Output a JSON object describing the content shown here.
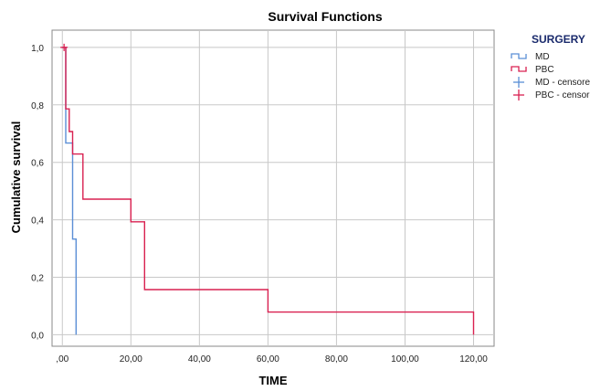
{
  "chart_data": {
    "type": "line",
    "step": true,
    "title": "Survival Functions",
    "xlabel": "TIME",
    "ylabel": "Cumulative survival",
    "xlim": [
      -3,
      126
    ],
    "ylim": [
      -0.04,
      1.06
    ],
    "xticks": [
      {
        "value": 0,
        "label": ",00"
      },
      {
        "value": 20,
        "label": "20,00"
      },
      {
        "value": 40,
        "label": "40,00"
      },
      {
        "value": 60,
        "label": "60,00"
      },
      {
        "value": 80,
        "label": "80,00"
      },
      {
        "value": 100,
        "label": "100,00"
      },
      {
        "value": 120,
        "label": "120,00"
      }
    ],
    "yticks": [
      {
        "value": 0,
        "label": "0,0"
      },
      {
        "value": 0.2,
        "label": "0,2"
      },
      {
        "value": 0.4,
        "label": "0,4"
      },
      {
        "value": 0.6,
        "label": "0,6"
      },
      {
        "value": 0.8,
        "label": "0,8"
      },
      {
        "value": 1.0,
        "label": "1,0"
      }
    ],
    "grid": true,
    "legend": {
      "title": "SURGERY",
      "placement": "right",
      "entries": [
        "MD",
        "PBC",
        "MD - censored",
        "PBC - censored"
      ]
    },
    "series": [
      {
        "name": "MD",
        "color": "#5b8fd6",
        "points": [
          [
            0,
            1.0
          ],
          [
            1,
            1.0
          ],
          [
            1,
            0.667
          ],
          [
            3,
            0.667
          ],
          [
            3,
            0.333
          ],
          [
            4,
            0.333
          ],
          [
            4,
            0.0
          ]
        ],
        "censored": []
      },
      {
        "name": "PBC",
        "color": "#d92050",
        "points": [
          [
            0,
            1.0
          ],
          [
            1,
            1.0
          ],
          [
            1,
            0.786
          ],
          [
            2,
            0.786
          ],
          [
            2,
            0.707
          ],
          [
            3,
            0.707
          ],
          [
            3,
            0.629
          ],
          [
            6,
            0.629
          ],
          [
            6,
            0.472
          ],
          [
            20,
            0.472
          ],
          [
            20,
            0.393
          ],
          [
            24,
            0.393
          ],
          [
            24,
            0.157
          ],
          [
            60,
            0.157
          ],
          [
            60,
            0.079
          ],
          [
            120,
            0.079
          ],
          [
            120,
            0.0
          ]
        ],
        "censored": [
          [
            0.5,
            1.0
          ]
        ]
      }
    ]
  }
}
